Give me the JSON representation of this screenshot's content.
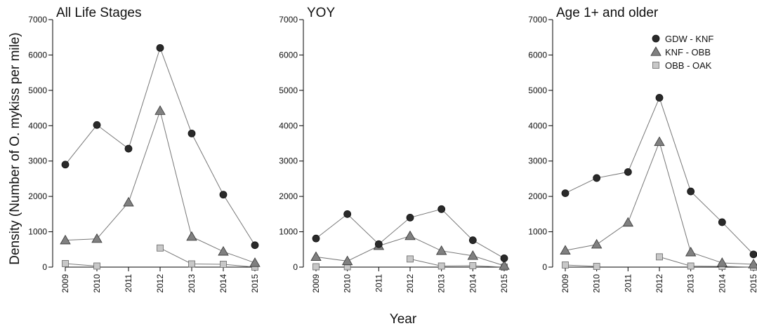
{
  "chart_data": {
    "type": "line",
    "ylabel": "Density (Number of O. mykiss per mile)",
    "xlabel": "Year",
    "ylim": [
      0,
      7000
    ],
    "yticks": [
      0,
      1000,
      2000,
      3000,
      4000,
      5000,
      6000,
      7000
    ],
    "categories": [
      "2009",
      "2010",
      "2011",
      "2012",
      "2013",
      "2014",
      "2015"
    ],
    "legend": {
      "placement": "top-right of third panel",
      "entries": [
        {
          "label": "GDW - KNF",
          "marker": "circle",
          "color": "#2a2a2a"
        },
        {
          "label": "KNF - OBB",
          "marker": "triangle",
          "color": "#808080"
        },
        {
          "label": "OBB - OAK",
          "marker": "square",
          "color": "#c8c8c8"
        }
      ]
    },
    "panels": [
      {
        "title": "All Life Stages",
        "series": [
          {
            "name": "GDW - KNF",
            "values": [
              2900,
              4020,
              3350,
              6200,
              3780,
              2050,
              620
            ]
          },
          {
            "name": "KNF - OBB",
            "values": [
              760,
              800,
              1830,
              4420,
              860,
              440,
              120
            ]
          },
          {
            "name": "OBB - OAK",
            "values": [
              100,
              30,
              null,
              540,
              90,
              80,
              0
            ]
          }
        ]
      },
      {
        "title": "YOY",
        "series": [
          {
            "name": "GDW - KNF",
            "values": [
              810,
              1500,
              650,
              1400,
              1640,
              760,
              250
            ]
          },
          {
            "name": "KNF - OBB",
            "values": [
              290,
              170,
              600,
              880,
              460,
              320,
              40
            ]
          },
          {
            "name": "OBB - OAK",
            "values": [
              10,
              10,
              null,
              230,
              30,
              40,
              0
            ]
          }
        ]
      },
      {
        "title": "Age 1+ and older",
        "series": [
          {
            "name": "GDW - KNF",
            "values": [
              2090,
              2520,
              2690,
              4790,
              2140,
              1270,
              360
            ]
          },
          {
            "name": "KNF - OBB",
            "values": [
              470,
              640,
              1260,
              3540,
              420,
              120,
              80
            ]
          },
          {
            "name": "OBB - OAK",
            "values": [
              60,
              20,
              null,
              290,
              30,
              20,
              0
            ]
          }
        ]
      }
    ]
  }
}
